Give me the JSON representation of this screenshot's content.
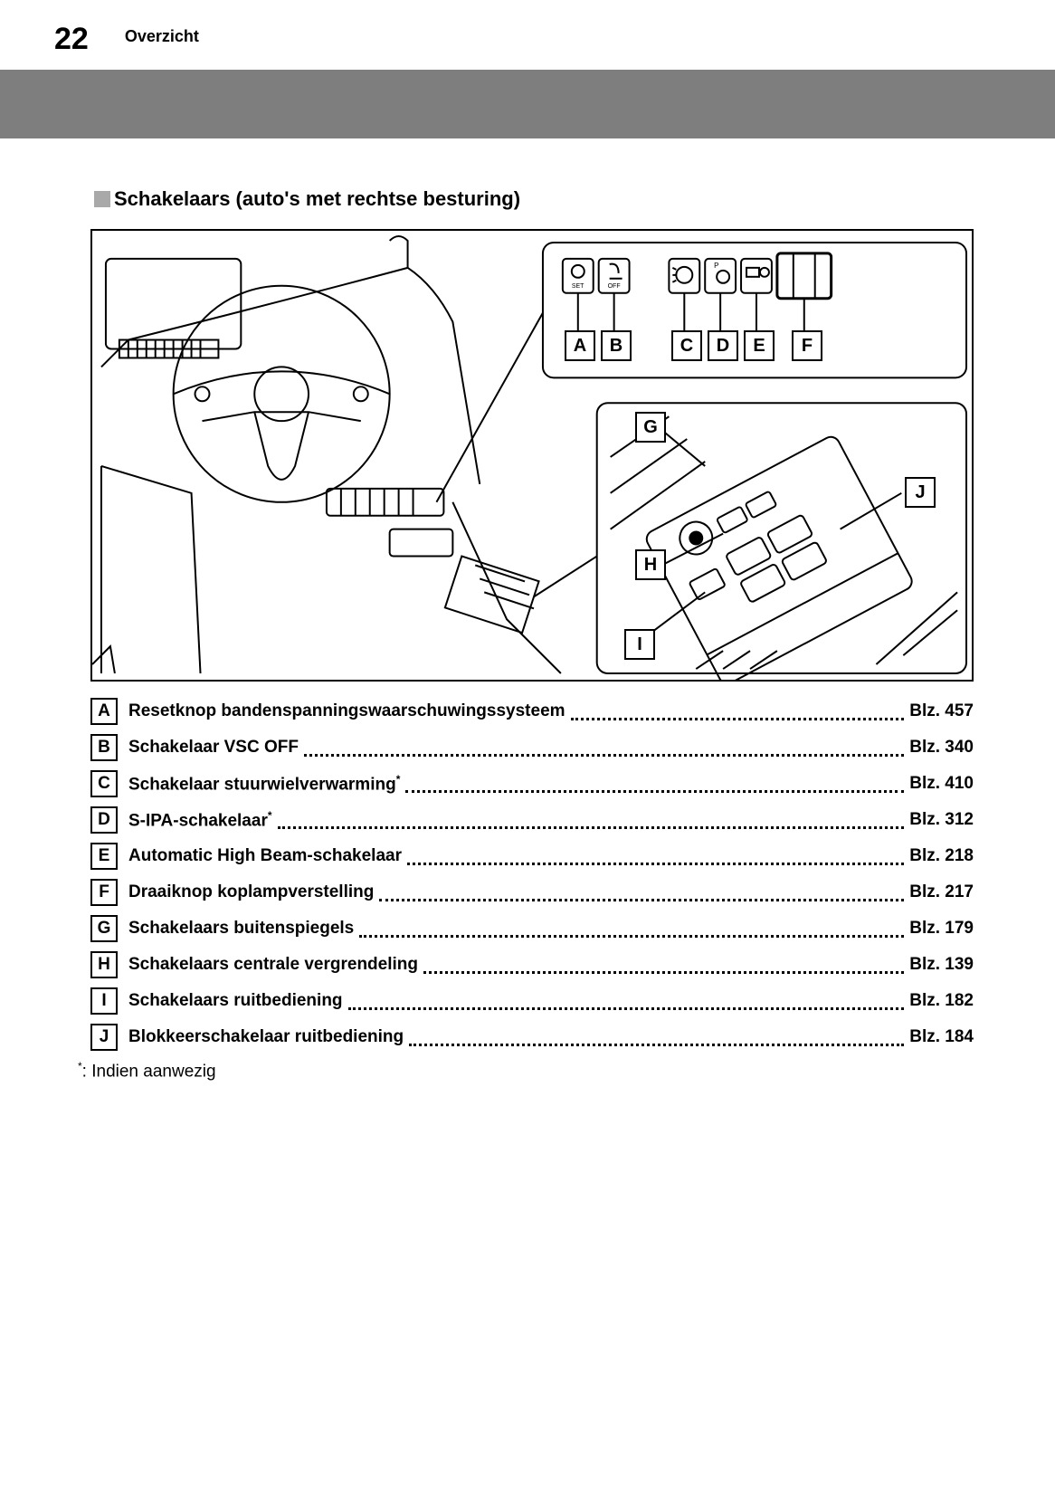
{
  "header": {
    "page_number": "22",
    "section": "Overzicht"
  },
  "subtitle": "Schakelaars (auto's met rechtse besturing)",
  "diagram": {
    "stroke": "#000000",
    "stroke_width": 2,
    "background": "#ffffff",
    "top_labels": [
      "A",
      "B",
      "C",
      "D",
      "E",
      "F"
    ],
    "side_labels": [
      "G",
      "H",
      "I",
      "J"
    ]
  },
  "items": [
    {
      "letter": "A",
      "label": "Resetknop bandenspanningswaarschuwingssysteem",
      "asterisk": false,
      "page": "Blz. 457"
    },
    {
      "letter": "B",
      "label": "Schakelaar VSC OFF",
      "asterisk": false,
      "page": "Blz. 340"
    },
    {
      "letter": "C",
      "label": "Schakelaar stuurwielverwarming",
      "asterisk": true,
      "page": "Blz. 410"
    },
    {
      "letter": "D",
      "label": "S-IPA-schakelaar",
      "asterisk": true,
      "page": "Blz. 312"
    },
    {
      "letter": "E",
      "label": "Automatic High Beam-schakelaar",
      "asterisk": false,
      "page": "Blz. 218"
    },
    {
      "letter": "F",
      "label": "Draaiknop koplampverstelling",
      "asterisk": false,
      "page": "Blz. 217"
    },
    {
      "letter": "G",
      "label": "Schakelaars buitenspiegels",
      "asterisk": false,
      "page": "Blz. 179"
    },
    {
      "letter": "H",
      "label": "Schakelaars centrale vergrendeling",
      "asterisk": false,
      "page": "Blz. 139"
    },
    {
      "letter": "I",
      "label": "Schakelaars ruitbediening",
      "asterisk": false,
      "page": "Blz. 182"
    },
    {
      "letter": "J",
      "label": "Blokkeerschakelaar ruitbediening",
      "asterisk": false,
      "page": "Blz. 184"
    }
  ],
  "footnote": ": Indien aanwezig",
  "colors": {
    "text": "#000000",
    "page_bg": "#ffffff",
    "header_bar": "#7e7e7e",
    "marker": "#a9a9a9"
  }
}
